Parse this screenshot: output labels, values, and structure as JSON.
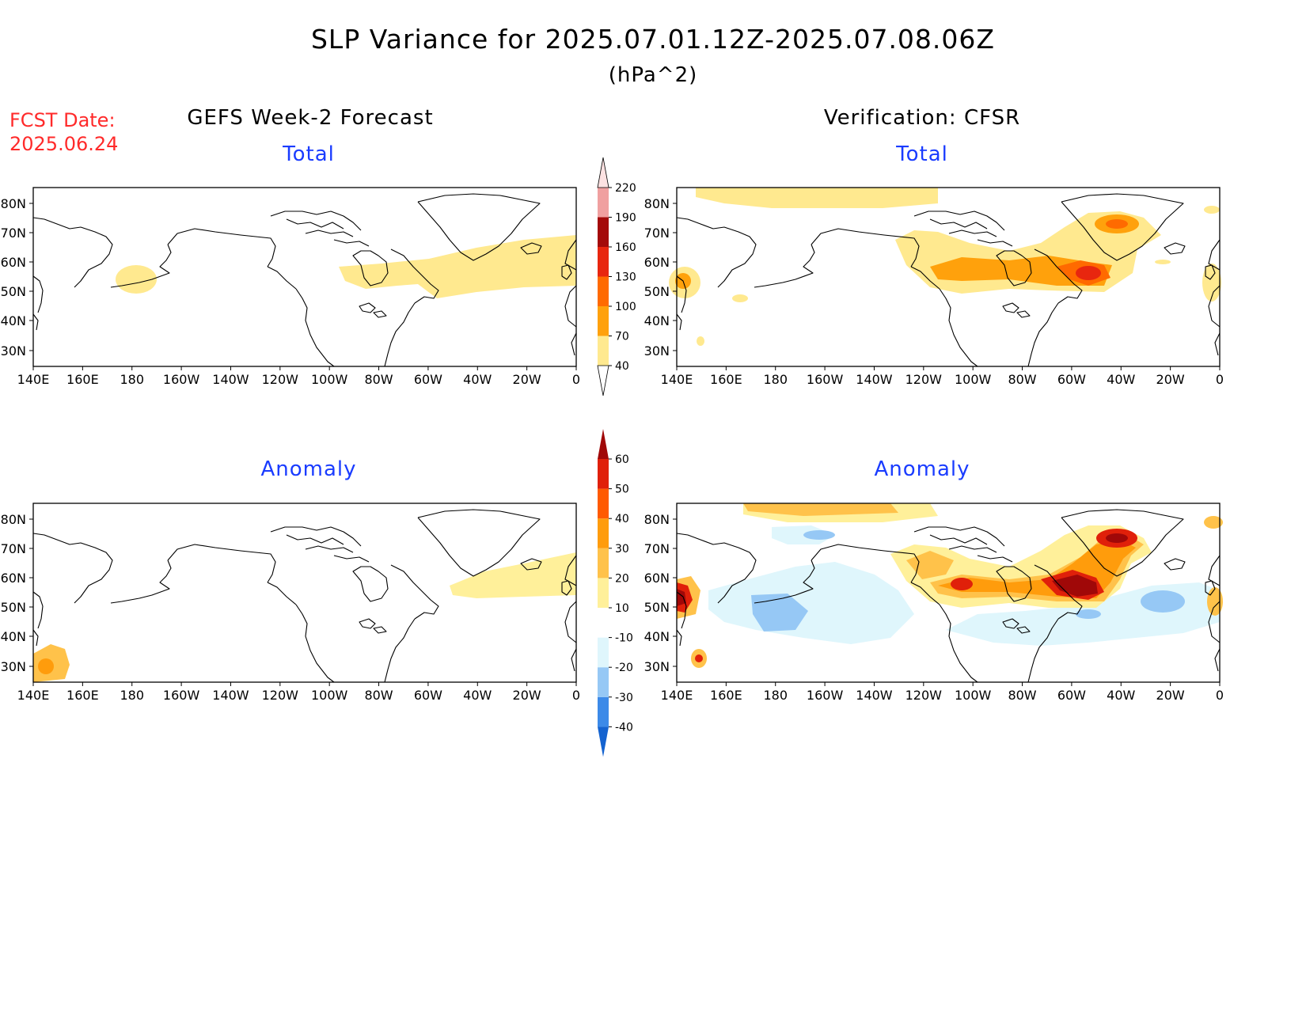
{
  "header": {
    "title": "SLP Variance for 2025.07.01.12Z-2025.07.08.06Z",
    "units": "(hPa^2)",
    "fcst_label": "FCST Date:",
    "fcst_date": "2025.06.24"
  },
  "columns": {
    "left": "GEFS Week-2 Forecast",
    "right": "Verification: CFSR"
  },
  "panels": {
    "top_left": "Total",
    "top_right": "Total",
    "bottom_left": "Anomaly",
    "bottom_right": "Anomaly"
  },
  "axes": {
    "lat_labels": [
      "80N",
      "70N",
      "60N",
      "50N",
      "40N",
      "30N"
    ],
    "lon_labels": [
      "140E",
      "160E",
      "180",
      "160W",
      "140W",
      "120W",
      "100W",
      "80W",
      "60W",
      "40W",
      "20W",
      "0"
    ]
  },
  "colorbars": {
    "total": {
      "labels": [
        "40",
        "70",
        "100",
        "130",
        "160",
        "190",
        "220"
      ],
      "colors": [
        "#ffe98f",
        "#ffa10c",
        "#ff6a00",
        "#e8260f",
        "#a40a0a",
        "#f0a0a0",
        "#fde2e2"
      ]
    },
    "anomaly": {
      "labels": [
        "-40",
        "-30",
        "-20",
        "-10",
        "10",
        "20",
        "30",
        "40",
        "50",
        "60"
      ],
      "colors": [
        "#1463d0",
        "#3c8ae8",
        "#96c8f5",
        "#dff6fc",
        "#ffffff",
        "#fff09a",
        "#ffc24a",
        "#ff9c0c",
        "#ff5a00",
        "#e0200a",
        "#a00808"
      ]
    }
  },
  "map": {
    "domain": "140E to 0, 25N to 85N"
  }
}
